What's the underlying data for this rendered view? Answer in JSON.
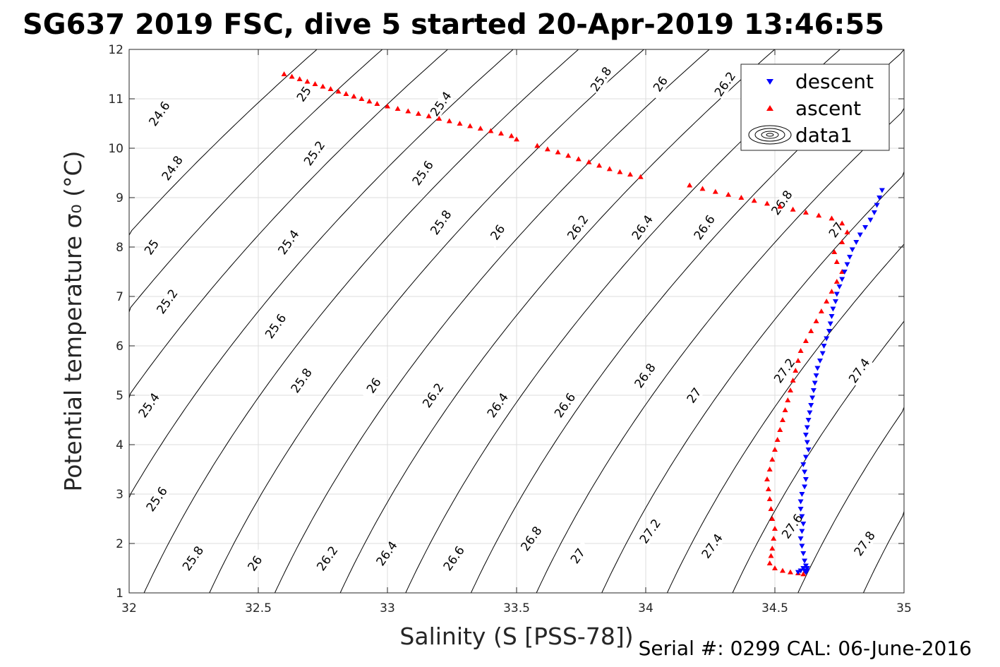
{
  "title": "SG637 2019 FSC, dive 5 started 20-Apr-2019 13:46:55",
  "serial": "Serial #: 0299 CAL: 06-June-2016",
  "colors": {
    "descent": "#0000ff",
    "ascent": "#ff0000",
    "grid": "#dcdcdc",
    "contour": "#000000"
  },
  "chart_data": {
    "type": "scatter",
    "xlabel": "Salinity (S [PSS-78])",
    "ylabel": "Potential temperature σ₀ (°C)",
    "xlim": [
      32,
      35
    ],
    "ylim": [
      1,
      12
    ],
    "xticks": [
      "32",
      "32.5",
      "33",
      "33.5",
      "34",
      "34.5",
      "35"
    ],
    "yticks": [
      "1",
      "2",
      "3",
      "4",
      "5",
      "6",
      "7",
      "8",
      "9",
      "10",
      "11",
      "12"
    ],
    "grid": true,
    "legend": {
      "position": "top-right",
      "entries": [
        "descent",
        "ascent",
        "data1"
      ]
    },
    "contour_levels": [
      24.6,
      24.8,
      25.0,
      25.2,
      25.4,
      25.6,
      25.8,
      26.0,
      26.2,
      26.4,
      26.6,
      26.8,
      27.0,
      27.2,
      27.4,
      27.6,
      27.8
    ],
    "contour_labels": [
      {
        "text": "24.6",
        "x": 32.13,
        "y": 10.65
      },
      {
        "text": "24.8",
        "x": 32.18,
        "y": 9.55
      },
      {
        "text": "25",
        "x": 32.1,
        "y": 7.95
      },
      {
        "text": "25.2",
        "x": 32.16,
        "y": 6.85
      },
      {
        "text": "25.4",
        "x": 32.09,
        "y": 4.75
      },
      {
        "text": "25.6",
        "x": 32.12,
        "y": 2.85
      },
      {
        "text": "25.8",
        "x": 32.26,
        "y": 1.65
      },
      {
        "text": "25",
        "x": 32.69,
        "y": 11.05
      },
      {
        "text": "25.2",
        "x": 32.73,
        "y": 9.85
      },
      {
        "text": "25.4",
        "x": 32.63,
        "y": 8.05
      },
      {
        "text": "25.6",
        "x": 32.58,
        "y": 6.35
      },
      {
        "text": "25.8",
        "x": 32.68,
        "y": 5.25
      },
      {
        "text": "26",
        "x": 32.5,
        "y": 1.55
      },
      {
        "text": "25.4",
        "x": 33.22,
        "y": 10.85
      },
      {
        "text": "25.6",
        "x": 33.15,
        "y": 9.45
      },
      {
        "text": "25.8",
        "x": 33.22,
        "y": 8.45
      },
      {
        "text": "26",
        "x": 32.96,
        "y": 5.15
      },
      {
        "text": "26.2",
        "x": 33.19,
        "y": 4.95
      },
      {
        "text": "26.2",
        "x": 32.78,
        "y": 1.65
      },
      {
        "text": "26.4",
        "x": 33.01,
        "y": 1.75
      },
      {
        "text": "26",
        "x": 33.44,
        "y": 8.25
      },
      {
        "text": "26.4",
        "x": 33.44,
        "y": 4.75
      },
      {
        "text": "26.6",
        "x": 33.27,
        "y": 1.65
      },
      {
        "text": "25.8",
        "x": 33.84,
        "y": 11.35
      },
      {
        "text": "26.2",
        "x": 33.75,
        "y": 8.35
      },
      {
        "text": "26.6",
        "x": 33.7,
        "y": 4.75
      },
      {
        "text": "26.8",
        "x": 33.57,
        "y": 2.05
      },
      {
        "text": "26",
        "x": 34.07,
        "y": 11.25
      },
      {
        "text": "26.4",
        "x": 34.0,
        "y": 8.35
      },
      {
        "text": "26.8",
        "x": 34.01,
        "y": 5.35
      },
      {
        "text": "27",
        "x": 33.75,
        "y": 1.7
      },
      {
        "text": "26.2",
        "x": 34.32,
        "y": 11.25
      },
      {
        "text": "26.6",
        "x": 34.24,
        "y": 8.35
      },
      {
        "text": "27",
        "x": 34.2,
        "y": 4.95
      },
      {
        "text": "27.2",
        "x": 34.03,
        "y": 2.2
      },
      {
        "text": "26.8",
        "x": 34.54,
        "y": 8.85
      },
      {
        "text": "27.2",
        "x": 34.55,
        "y": 5.45
      },
      {
        "text": "27.4",
        "x": 34.27,
        "y": 1.9
      },
      {
        "text": "27",
        "x": 34.75,
        "y": 8.3
      },
      {
        "text": "27.4",
        "x": 34.84,
        "y": 5.45
      },
      {
        "text": "27.6",
        "x": 34.58,
        "y": 2.3
      },
      {
        "text": "27.8",
        "x": 34.86,
        "y": 1.95
      }
    ],
    "series": [
      {
        "name": "descent",
        "marker": "triangle-down",
        "x": [
          34.915,
          34.905,
          34.895,
          34.885,
          34.87,
          34.85,
          34.83,
          34.815,
          34.8,
          34.79,
          34.78,
          34.77,
          34.76,
          34.75,
          34.74,
          34.735,
          34.725,
          34.72,
          34.715,
          34.71,
          34.7,
          34.69,
          34.685,
          34.675,
          34.665,
          34.66,
          34.655,
          34.65,
          34.645,
          34.64,
          34.635,
          34.63,
          34.625,
          34.62,
          34.625,
          34.63,
          34.62,
          34.61,
          34.615,
          34.62,
          34.615,
          34.605,
          34.6,
          34.6,
          34.605,
          34.61,
          34.605,
          34.6,
          34.605,
          34.61,
          34.615,
          34.62,
          34.625,
          34.625,
          34.62,
          34.615,
          34.61,
          34.6,
          34.59
        ],
        "y": [
          9.15,
          9.0,
          8.85,
          8.7,
          8.55,
          8.4,
          8.25,
          8.1,
          7.95,
          7.8,
          7.65,
          7.5,
          7.35,
          7.2,
          7.05,
          6.9,
          6.75,
          6.6,
          6.45,
          6.3,
          6.15,
          6.0,
          5.85,
          5.7,
          5.55,
          5.4,
          5.25,
          5.1,
          4.95,
          4.8,
          4.65,
          4.5,
          4.35,
          4.2,
          4.05,
          3.9,
          3.75,
          3.6,
          3.45,
          3.3,
          3.15,
          3.0,
          2.85,
          2.7,
          2.55,
          2.4,
          2.25,
          2.1,
          1.95,
          1.8,
          1.65,
          1.55,
          1.5,
          1.45,
          1.42,
          1.45,
          1.5,
          1.45,
          1.42
        ]
      },
      {
        "name": "ascent",
        "marker": "triangle-up",
        "x": [
          32.6,
          32.63,
          32.66,
          32.69,
          32.72,
          32.75,
          32.78,
          32.81,
          32.84,
          32.87,
          32.9,
          32.93,
          32.96,
          33.0,
          33.04,
          33.08,
          33.12,
          33.16,
          33.2,
          33.24,
          33.28,
          33.32,
          33.36,
          33.4,
          33.44,
          33.48,
          33.5,
          33.58,
          33.62,
          33.66,
          33.7,
          33.74,
          33.78,
          33.82,
          33.86,
          33.9,
          33.94,
          33.98,
          34.17,
          34.22,
          34.27,
          34.32,
          34.37,
          34.42,
          34.47,
          34.52,
          34.57,
          34.62,
          34.67,
          34.72,
          34.76,
          34.78,
          34.76,
          34.73,
          34.74,
          34.76,
          34.74,
          34.72,
          34.7,
          34.68,
          34.66,
          34.64,
          34.62,
          34.6,
          34.59,
          34.58,
          34.57,
          34.56,
          34.55,
          34.54,
          34.53,
          34.52,
          34.51,
          34.5,
          34.49,
          34.48,
          34.47,
          34.475,
          34.48,
          34.485,
          34.49,
          34.5,
          34.495,
          34.49,
          34.485,
          34.48,
          34.5,
          34.53,
          34.56,
          34.59,
          34.61
        ],
        "y": [
          11.5,
          11.45,
          11.4,
          11.35,
          11.3,
          11.25,
          11.2,
          11.15,
          11.1,
          11.05,
          11.0,
          10.95,
          10.9,
          10.85,
          10.8,
          10.75,
          10.7,
          10.65,
          10.6,
          10.55,
          10.5,
          10.45,
          10.4,
          10.35,
          10.3,
          10.25,
          10.18,
          10.05,
          9.98,
          9.92,
          9.85,
          9.78,
          9.72,
          9.65,
          9.58,
          9.52,
          9.47,
          9.42,
          9.25,
          9.18,
          9.12,
          9.06,
          9.0,
          8.94,
          8.88,
          8.82,
          8.76,
          8.7,
          8.64,
          8.58,
          8.48,
          8.3,
          8.1,
          7.9,
          7.7,
          7.5,
          7.3,
          7.1,
          6.9,
          6.7,
          6.5,
          6.3,
          6.1,
          5.9,
          5.7,
          5.5,
          5.3,
          5.1,
          4.9,
          4.7,
          4.5,
          4.3,
          4.1,
          3.9,
          3.7,
          3.5,
          3.3,
          3.1,
          2.9,
          2.7,
          2.5,
          2.3,
          2.1,
          1.9,
          1.75,
          1.6,
          1.5,
          1.45,
          1.42,
          1.4,
          1.38
        ]
      }
    ]
  }
}
